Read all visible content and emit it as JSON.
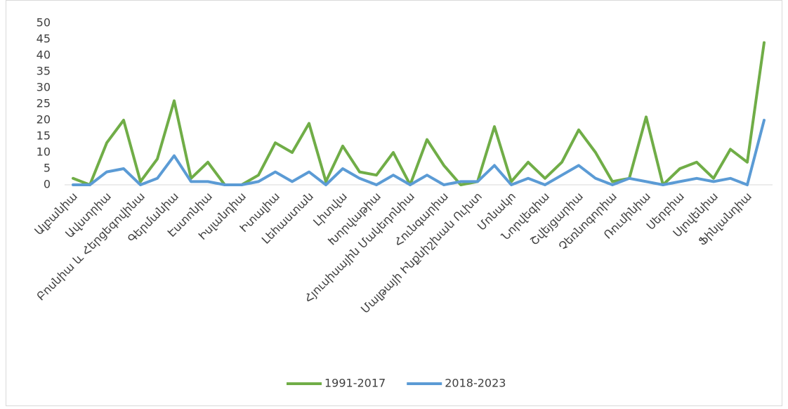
{
  "chart_data": {
    "type": "line",
    "categories": [
      "Ալբանիա",
      null,
      "Ավստրիա",
      null,
      "Բոսնիա և Հերցեգովինա",
      null,
      "Գերմանիա",
      null,
      "Էստոնիա",
      null,
      "Իսլանդիա",
      null,
      "Իտալիա",
      null,
      "Լեհաստան",
      null,
      "Լիտվա",
      null,
      "Խորվաթիա",
      null,
      "Հյուսիսային Մակեդոնիա",
      null,
      "Հունգարիա",
      null,
      "Մալթայի Ինքնիշխան Ուխտ",
      null,
      "Մոնակո",
      null,
      "Նորվեգիա",
      null,
      "Շվեյցարիա",
      null,
      "Չեռնոգորիա",
      null,
      "Ռումինիա",
      null,
      "Սերբիա",
      null,
      "Սլովենիա",
      null,
      "Ֆինլանդիա",
      null
    ],
    "series": [
      {
        "name": "1991-2017",
        "color": "#70ad47",
        "values": [
          2,
          0,
          13,
          20,
          1,
          8,
          26,
          2,
          7,
          0,
          0,
          3,
          13,
          10,
          19,
          1,
          12,
          4,
          3,
          10,
          0,
          14,
          6,
          0,
          1,
          18,
          1,
          7,
          2,
          7,
          17,
          10,
          1,
          2,
          21,
          0,
          5,
          7,
          2,
          11,
          7,
          44
        ]
      },
      {
        "name": "2018-2023",
        "color": "#5b9bd5",
        "values": [
          0,
          0,
          4,
          5,
          0,
          2,
          9,
          1,
          1,
          0,
          0,
          1,
          4,
          1,
          4,
          0,
          5,
          2,
          0,
          3,
          0,
          3,
          0,
          1,
          1,
          6,
          0,
          2,
          0,
          3,
          6,
          2,
          0,
          2,
          1,
          0,
          1,
          2,
          1,
          2,
          0,
          20
        ]
      }
    ],
    "ylim": [
      0,
      50
    ],
    "yticks": [
      0,
      5,
      10,
      15,
      20,
      25,
      30,
      35,
      40,
      45,
      50
    ],
    "legend": "bottom"
  }
}
